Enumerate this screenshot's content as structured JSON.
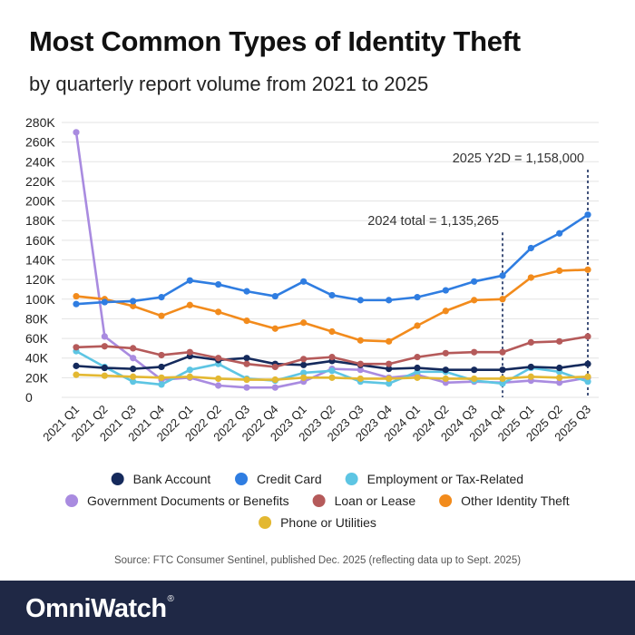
{
  "title": "Most Common Types of Identity Theft",
  "subtitle": "by quarterly report volume from 2021 to 2025",
  "source": "Source: FTC Consumer Sentinel, published Dec. 2025 (reflecting data up to Sept. 2025)",
  "logo": {
    "text": "OmniWatch",
    "mark": "®"
  },
  "chart_data": {
    "type": "line",
    "title": "Most Common Types of Identity Theft",
    "subtitle": "by quarterly report volume from 2021 to 2025",
    "xlabel": "",
    "ylabel": "",
    "ylim": [
      0,
      280000
    ],
    "yticks": [
      0,
      20000,
      40000,
      60000,
      80000,
      100000,
      120000,
      140000,
      160000,
      180000,
      200000,
      220000,
      240000,
      260000,
      280000
    ],
    "ytick_labels": [
      "0",
      "20K",
      "40K",
      "60K",
      "80K",
      "100K",
      "120K",
      "140K",
      "160K",
      "180K",
      "200K",
      "220K",
      "240K",
      "260K",
      "280K"
    ],
    "grid": true,
    "legend_position": "bottom",
    "categories": [
      "2021 Q1",
      "2021 Q2",
      "2021 Q3",
      "2021 Q4",
      "2022 Q1",
      "2022 Q2",
      "2022 Q3",
      "2022 Q4",
      "2023 Q1",
      "2023 Q2",
      "2023 Q3",
      "2023 Q4",
      "2024 Q1",
      "2024 Q2",
      "2024 Q3",
      "2024 Q4",
      "2025 Q1",
      "2025 Q2",
      "2025 Q3"
    ],
    "series": [
      {
        "name": "Government Documents or Benefits",
        "color": "#a98be0",
        "values": [
          270000,
          62000,
          40000,
          18000,
          20000,
          12000,
          10000,
          10000,
          16000,
          29000,
          28000,
          20000,
          23000,
          15000,
          16000,
          15000,
          17000,
          15000,
          20000
        ]
      },
      {
        "name": "Employment or Tax-Related",
        "color": "#5dc5e3",
        "values": [
          47000,
          31000,
          16000,
          13000,
          28000,
          34000,
          19000,
          17000,
          25000,
          27000,
          16000,
          14000,
          26000,
          26000,
          17000,
          14000,
          30000,
          26000,
          16000
        ]
      },
      {
        "name": "Phone or Utilities",
        "color": "#e3b832",
        "values": [
          23000,
          22000,
          21000,
          20000,
          21000,
          19000,
          18000,
          18000,
          20000,
          20000,
          19000,
          19000,
          20000,
          19000,
          19000,
          19000,
          21000,
          20000,
          21000
        ]
      },
      {
        "name": "Bank Account",
        "color": "#152a5c",
        "values": [
          32000,
          30000,
          29000,
          31000,
          42000,
          38000,
          40000,
          34000,
          33000,
          37000,
          33000,
          29000,
          30000,
          28000,
          28000,
          28000,
          31000,
          30000,
          34000
        ]
      },
      {
        "name": "Loan or Lease",
        "color": "#b55a5a",
        "values": [
          51000,
          52000,
          50000,
          43000,
          46000,
          40000,
          34000,
          31000,
          39000,
          41000,
          34000,
          34000,
          41000,
          45000,
          46000,
          46000,
          56000,
          57000,
          62000
        ]
      },
      {
        "name": "Other Identity Theft",
        "color": "#f28b1c",
        "values": [
          103000,
          100000,
          93000,
          83000,
          94000,
          87000,
          78000,
          70000,
          76000,
          67000,
          58000,
          57000,
          73000,
          88000,
          99000,
          100000,
          122000,
          129000,
          130000
        ]
      },
      {
        "name": "Credit Card",
        "color": "#2f7de1",
        "values": [
          95000,
          97000,
          98000,
          102000,
          119000,
          115000,
          108000,
          103000,
          118000,
          104000,
          99000,
          99000,
          102000,
          109000,
          118000,
          124000,
          152000,
          167000,
          186000
        ]
      }
    ],
    "legend_order": [
      "Bank Account",
      "Credit Card",
      "Employment or Tax-Related",
      "Government Documents or Benefits",
      "Loan or Lease",
      "Other Identity Theft",
      "Phone or Utilities"
    ],
    "annotations": [
      {
        "text": "2024 total = 1,135,265",
        "category": "2024 Q4",
        "y_top": 168000
      },
      {
        "text": "2025 Y2D = 1,158,000",
        "category": "2025 Q3",
        "y_top": 232000
      }
    ]
  }
}
